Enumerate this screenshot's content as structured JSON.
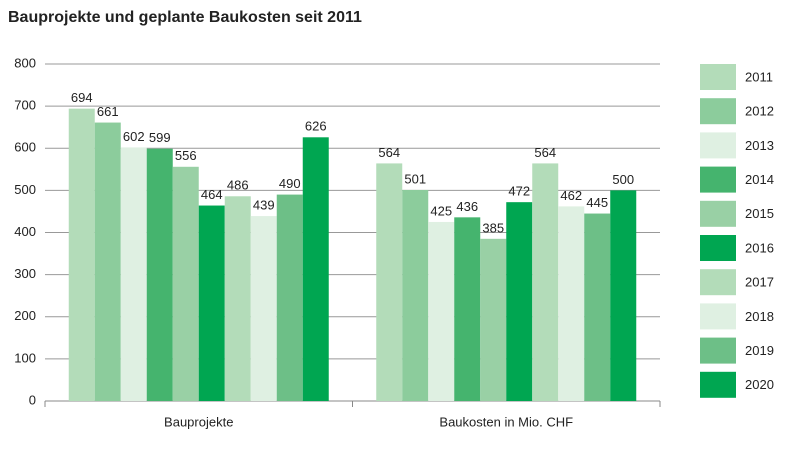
{
  "chart_data": {
    "type": "bar",
    "title": "Bauprojekte und geplante Baukosten seit 2011",
    "categories": [
      "Bauprojekte",
      "Baukosten in Mio. CHF"
    ],
    "series": [
      {
        "name": "2011",
        "color": "#b3dcb9",
        "values": [
          694,
          564
        ]
      },
      {
        "name": "2012",
        "color": "#8ccc9c",
        "values": [
          661,
          501
        ]
      },
      {
        "name": "2013",
        "color": "#dff0e2",
        "values": [
          602,
          425
        ]
      },
      {
        "name": "2014",
        "color": "#45b46e",
        "values": [
          599,
          436
        ]
      },
      {
        "name": "2015",
        "color": "#99d0a5",
        "values": [
          556,
          385
        ]
      },
      {
        "name": "2016",
        "color": "#00a651",
        "values": [
          464,
          472
        ]
      },
      {
        "name": "2017",
        "color": "#b3dcb9",
        "values": [
          486,
          564
        ]
      },
      {
        "name": "2018",
        "color": "#dff0e2",
        "values": [
          439,
          462
        ]
      },
      {
        "name": "2019",
        "color": "#6dbf87",
        "values": [
          490,
          445
        ]
      },
      {
        "name": "2020",
        "color": "#00a651",
        "values": [
          626,
          500
        ]
      }
    ],
    "ylim": [
      0,
      800
    ],
    "yticks": [
      0,
      100,
      200,
      300,
      400,
      500,
      600,
      700,
      800
    ],
    "grid": true
  }
}
